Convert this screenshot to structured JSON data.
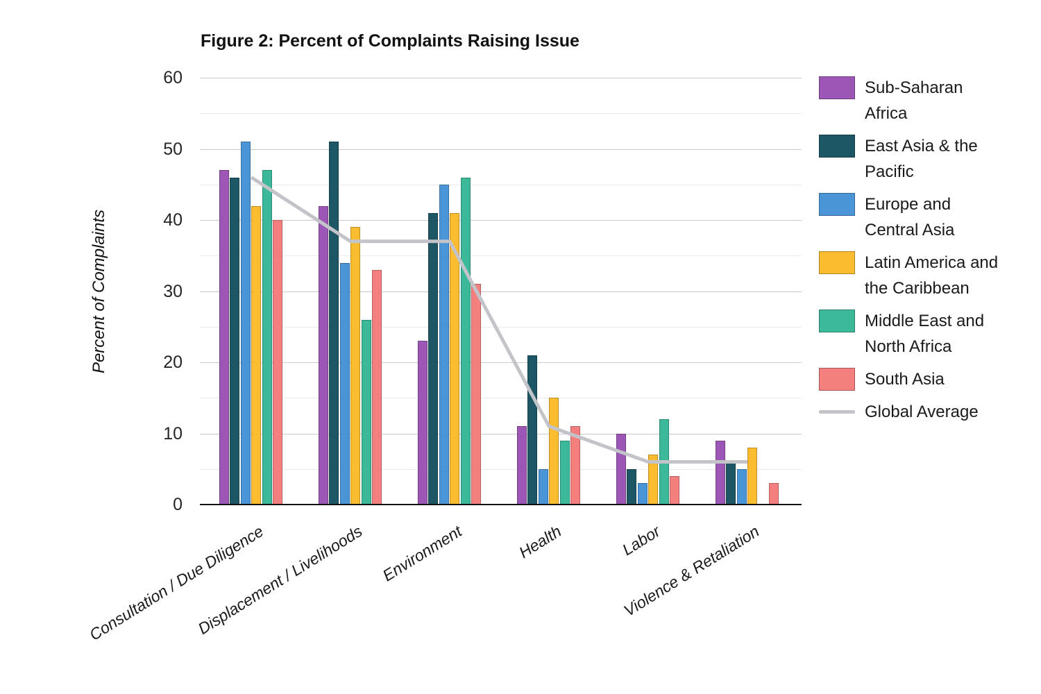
{
  "title": "Figure 2: Percent of Complaints Raising Issue",
  "chart_data": {
    "type": "bar",
    "title": "Figure 2: Percent of Complaints Raising Issue",
    "xlabel": "",
    "ylabel": "Percent of Complaints",
    "ylim": [
      0,
      60
    ],
    "y_major_ticks": [
      0,
      10,
      20,
      30,
      40,
      50,
      60
    ],
    "y_minor_ticks": [
      5,
      15,
      25,
      35,
      45,
      55
    ],
    "grid": "horizontal, major and minor, behind bars",
    "legend_position": "right",
    "categories": [
      "Consultation / Due Diligence",
      "Displacement / Livelihoods",
      "Environment",
      "Health",
      "Labor",
      "Violence & Retaliation"
    ],
    "series": [
      {
        "name": "Sub-Saharan Africa",
        "color": "#9b56b6",
        "values": [
          47,
          42,
          23,
          11,
          10,
          9
        ]
      },
      {
        "name": "East Asia & the Pacific",
        "color": "#1d5766",
        "values": [
          46,
          51,
          41,
          21,
          5,
          6
        ]
      },
      {
        "name": "Europe and Central Asia",
        "color": "#4a94d8",
        "values": [
          51,
          34,
          45,
          5,
          3,
          5
        ]
      },
      {
        "name": "Latin America and the Caribbean",
        "color": "#fbbc30",
        "values": [
          42,
          39,
          41,
          15,
          7,
          8
        ]
      },
      {
        "name": "Middle East and North Africa",
        "color": "#3cb998",
        "values": [
          47,
          26,
          46,
          9,
          12,
          0
        ]
      },
      {
        "name": "South Asia",
        "color": "#f47f7f",
        "values": [
          40,
          33,
          31,
          11,
          4,
          3
        ]
      }
    ],
    "line_series": {
      "name": "Global Average",
      "color": "#c3c4c9",
      "values": [
        46,
        37,
        37,
        11,
        6,
        6
      ]
    }
  },
  "legend": {
    "items": [
      {
        "lines": [
          "Sub-Saharan",
          "Africa"
        ],
        "swatch": "#9b56b6",
        "type": "patch"
      },
      {
        "lines": [
          "East Asia & the",
          "Pacific"
        ],
        "swatch": "#1d5766",
        "type": "patch"
      },
      {
        "lines": [
          "Europe and",
          "Central Asia"
        ],
        "swatch": "#4a94d8",
        "type": "patch"
      },
      {
        "lines": [
          "Latin America and",
          "the Caribbean"
        ],
        "swatch": "#fbbc30",
        "type": "patch"
      },
      {
        "lines": [
          "Middle East and",
          "North Africa"
        ],
        "swatch": "#3cb998",
        "type": "patch"
      },
      {
        "lines": [
          "South Asia"
        ],
        "swatch": "#f47f7f",
        "type": "patch"
      },
      {
        "lines": [
          "Global Average"
        ],
        "swatch": "#c3c4c9",
        "type": "line"
      }
    ]
  }
}
